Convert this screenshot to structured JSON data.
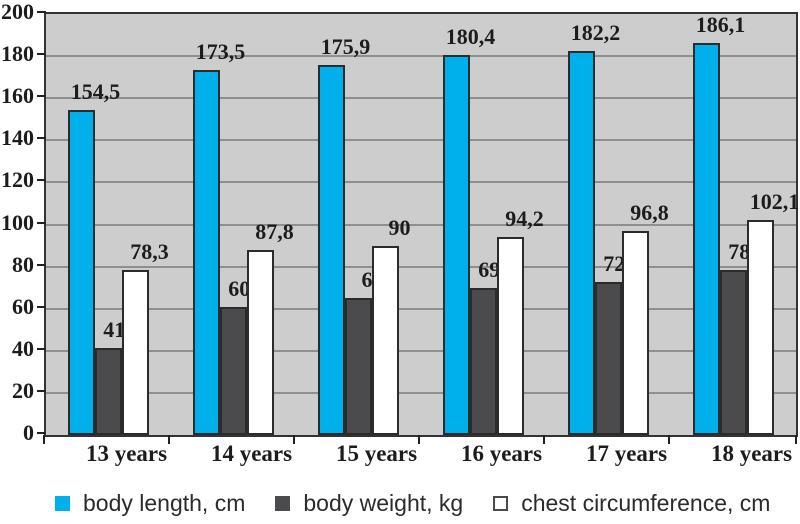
{
  "colors": {
    "body_length": "#00b0eb",
    "body_weight": "#4b4b4d",
    "chest_circumference": "#ffffff",
    "plot_background": "#cdcdcd",
    "gridline": "#8f8f8f",
    "axis": "#333333",
    "text": "#1c1c1c"
  },
  "legend": {
    "items": [
      {
        "label": "body length, cm",
        "color": "#00b0eb",
        "bordered": false
      },
      {
        "label": "body weight, kg",
        "color": "#4b4b4d",
        "bordered": false
      },
      {
        "label": "chest circumference, cm",
        "color": "#ffffff",
        "bordered": true
      }
    ]
  },
  "chart_data": {
    "type": "bar",
    "title": "",
    "xlabel": "",
    "ylabel": "",
    "categories": [
      "13 years",
      "14 years",
      "15 years",
      "16 years",
      "17 years",
      "18 years"
    ],
    "series": [
      {
        "name": "body length, cm",
        "color": "#00b0eb",
        "bordered": false,
        "values": [
          154.5,
          173.5,
          175.9,
          180.4,
          182.2,
          186.1
        ],
        "labels": [
          "154,5",
          "173,5",
          "175,9",
          "180,4",
          "182,2",
          "186,1"
        ]
      },
      {
        "name": "body weight, kg",
        "color": "#4b4b4d",
        "bordered": false,
        "values": [
          41.5,
          60.6,
          65,
          69.7,
          72.9,
          78.6
        ],
        "labels": [
          "41,5",
          "60,6",
          "65",
          "69,7",
          "72,9",
          "78,6"
        ]
      },
      {
        "name": "chest circumference, cm",
        "color": "#ffffff",
        "bordered": true,
        "values": [
          78.3,
          87.8,
          90,
          94.2,
          96.8,
          102.1
        ],
        "labels": [
          "78,3",
          "87,8",
          "90",
          "94,2",
          "96,8",
          "102,1"
        ]
      }
    ],
    "ylim": [
      0,
      200
    ],
    "yticks": [
      0,
      20,
      40,
      60,
      80,
      100,
      120,
      140,
      160,
      180,
      200
    ],
    "grid": true,
    "legend_position": "bottom"
  }
}
